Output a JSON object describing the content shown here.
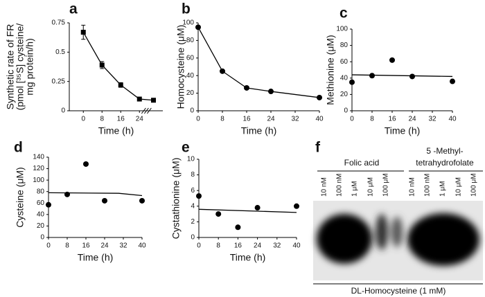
{
  "chart_data": [
    {
      "type": "line",
      "panel_label": "a",
      "marker": "square",
      "ylabel": [
        "Synthetic rate of FR",
        "(pmol [³⁵S] cysteine/",
        "mg protein/h)"
      ],
      "xlabel": "Time (h)",
      "x": [
        0,
        8,
        16,
        24,
        30
      ],
      "values": [
        0.67,
        0.39,
        0.22,
        0.1,
        0.09
      ],
      "errors": [
        0.06,
        0.03,
        0.02,
        0.01,
        0.01
      ],
      "xlim": [
        -6,
        34
      ],
      "xticks": [
        0,
        8,
        16,
        24
      ],
      "ylim": [
        0,
        0.75
      ],
      "yticks": [
        0,
        0.25,
        0.5,
        0.75
      ],
      "axis_break": true
    },
    {
      "type": "line",
      "panel_label": "b",
      "marker": "circle",
      "ylabel": [
        "Homocysteine (μM)"
      ],
      "xlabel": "Time (h)",
      "x": [
        0,
        8,
        16,
        24,
        40
      ],
      "values": [
        95,
        45,
        26,
        22,
        15
      ],
      "xlim": [
        0,
        40
      ],
      "xticks": [
        0,
        8,
        16,
        24,
        32,
        40
      ],
      "ylim": [
        0,
        100
      ],
      "yticks": [
        0,
        20,
        40,
        60,
        80,
        100
      ]
    },
    {
      "type": "scatter",
      "panel_label": "c",
      "marker": "circle",
      "ylabel": [
        "Methionine (μM)"
      ],
      "xlabel": "Time (h)",
      "x": [
        0,
        8,
        16,
        24,
        40
      ],
      "values": [
        35,
        43,
        62,
        42,
        36
      ],
      "trend_x": [
        0,
        40
      ],
      "trend_values": [
        44,
        42
      ],
      "xlim": [
        0,
        40
      ],
      "xticks": [
        0,
        8,
        16,
        24,
        32,
        40
      ],
      "ylim": [
        0,
        100
      ],
      "yticks": [
        0,
        20,
        40,
        60,
        80,
        100
      ]
    },
    {
      "type": "scatter",
      "panel_label": "d",
      "marker": "circle",
      "ylabel": [
        "Cysteine (μM)"
      ],
      "xlabel": "Time (h)",
      "x": [
        0,
        8,
        16,
        24,
        40
      ],
      "values": [
        57,
        75,
        128,
        64,
        64
      ],
      "trend_x": [
        0,
        30,
        40
      ],
      "trend_values": [
        78,
        77,
        73
      ],
      "xlim": [
        0,
        40
      ],
      "xticks": [
        0,
        8,
        16,
        24,
        32,
        40
      ],
      "ylim": [
        0,
        140
      ],
      "yticks": [
        0,
        20,
        40,
        60,
        80,
        100,
        120,
        140
      ]
    },
    {
      "type": "scatter",
      "panel_label": "e",
      "marker": "circle",
      "ylabel": [
        "Cystathionine (μM)"
      ],
      "xlabel": "Time (h)",
      "x": [
        0,
        8,
        16,
        24,
        40
      ],
      "values": [
        5.3,
        3.0,
        1.3,
        3.8,
        4.0
      ],
      "trend_x": [
        0,
        40
      ],
      "trend_values": [
        3.6,
        3.2
      ],
      "xlim": [
        0,
        40
      ],
      "xticks": [
        0,
        8,
        16,
        24,
        32,
        40
      ],
      "ylim": [
        0,
        10
      ],
      "yticks": [
        0,
        2,
        4,
        6,
        8,
        10
      ]
    }
  ],
  "gel": {
    "panel_label": "f",
    "groups": [
      [
        "Folic acid"
      ],
      [
        "5 -Methyl-",
        "tetrahydrofolate"
      ]
    ],
    "lanes": [
      "10 nM",
      "100 nM",
      "1 μM",
      "10 μM",
      "100 μM",
      "10 nM",
      "100 nM",
      "1 μM",
      "10 μM",
      "100 μM"
    ],
    "footer": "DL-Homocysteine (1 mM)"
  }
}
